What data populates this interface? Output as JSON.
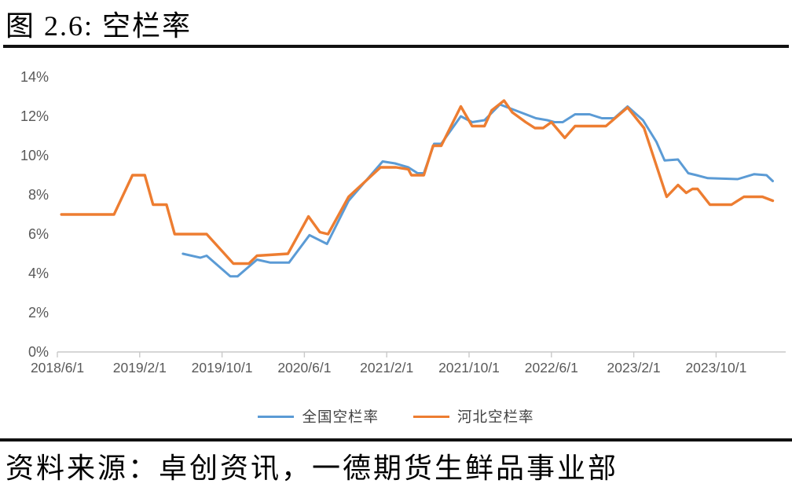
{
  "header": {
    "title": "图 2.6:  空栏率"
  },
  "footer": {
    "source": "资料来源：卓创资讯，一德期货生鲜品事业部"
  },
  "chart_data": {
    "type": "line",
    "title": "空栏率",
    "x_axis": {
      "unit": "date",
      "x_encoding": "months_since_2018-06-01",
      "range": [
        0,
        70
      ],
      "tick_positions": [
        0,
        8,
        16,
        24,
        32,
        40,
        48,
        56,
        64
      ],
      "tick_labels": [
        "2018/6/1",
        "2019/2/1",
        "2019/10/1",
        "2020/6/1",
        "2021/2/1",
        "2021/10/1",
        "2022/6/1",
        "2023/2/1",
        "2023/10/1"
      ]
    },
    "y_axis": {
      "unit": "%",
      "range": [
        0,
        14
      ],
      "tick_values": [
        0,
        2,
        4,
        6,
        8,
        10,
        12,
        14
      ],
      "tick_labels": [
        "0%",
        "2%",
        "4%",
        "6%",
        "8%",
        "10%",
        "12%",
        "14%"
      ],
      "grid": false
    },
    "legend": {
      "position": "bottom",
      "items": [
        {
          "name": "全国空栏率",
          "color": "#5B9BD5"
        },
        {
          "name": "河北空栏率",
          "color": "#ED7D31"
        }
      ]
    },
    "series": [
      {
        "name": "全国空栏率",
        "color": "#5B9BD5",
        "width": 3,
        "points": [
          [
            12.2,
            5.0
          ],
          [
            13.9,
            4.8
          ],
          [
            14.5,
            4.9
          ],
          [
            16.8,
            3.85
          ],
          [
            17.5,
            3.85
          ],
          [
            19.4,
            4.7
          ],
          [
            20.7,
            4.55
          ],
          [
            22.5,
            4.55
          ],
          [
            24.5,
            5.95
          ],
          [
            26.2,
            5.5
          ],
          [
            28.3,
            7.7
          ],
          [
            31.6,
            9.7
          ],
          [
            32.8,
            9.6
          ],
          [
            34.1,
            9.4
          ],
          [
            35.0,
            9.1
          ],
          [
            35.6,
            9.1
          ],
          [
            36.6,
            10.6
          ],
          [
            37.3,
            10.6
          ],
          [
            39.2,
            12.0
          ],
          [
            40.3,
            11.7
          ],
          [
            41.5,
            11.8
          ],
          [
            43.0,
            12.6
          ],
          [
            44.0,
            12.4
          ],
          [
            45.5,
            12.1
          ],
          [
            46.5,
            11.9
          ],
          [
            47.6,
            11.8
          ],
          [
            48.3,
            11.7
          ],
          [
            49.1,
            11.7
          ],
          [
            50.3,
            12.1
          ],
          [
            51.7,
            12.1
          ],
          [
            52.9,
            11.9
          ],
          [
            54.1,
            11.9
          ],
          [
            55.4,
            12.5
          ],
          [
            56.9,
            11.8
          ],
          [
            58.2,
            10.7
          ],
          [
            59.0,
            9.75
          ],
          [
            60.3,
            9.8
          ],
          [
            61.3,
            9.1
          ],
          [
            62.1,
            9.0
          ],
          [
            63.2,
            8.85
          ],
          [
            66.1,
            8.8
          ],
          [
            67.7,
            9.05
          ],
          [
            68.9,
            9.0
          ],
          [
            69.5,
            8.7
          ]
        ]
      },
      {
        "name": "河北空栏率",
        "color": "#ED7D31",
        "width": 3.4,
        "points": [
          [
            0.4,
            7.0
          ],
          [
            5.5,
            7.0
          ],
          [
            7.3,
            9.0
          ],
          [
            8.5,
            9.0
          ],
          [
            9.3,
            7.5
          ],
          [
            10.6,
            7.5
          ],
          [
            11.4,
            6.0
          ],
          [
            14.5,
            6.0
          ],
          [
            17.1,
            4.5
          ],
          [
            18.6,
            4.5
          ],
          [
            19.4,
            4.9
          ],
          [
            22.4,
            5.0
          ],
          [
            24.4,
            6.9
          ],
          [
            25.5,
            6.1
          ],
          [
            26.3,
            6.0
          ],
          [
            28.3,
            7.9
          ],
          [
            31.4,
            9.4
          ],
          [
            32.9,
            9.4
          ],
          [
            34.1,
            9.3
          ],
          [
            34.4,
            9.0
          ],
          [
            35.6,
            9.0
          ],
          [
            36.5,
            10.5
          ],
          [
            37.3,
            10.5
          ],
          [
            39.2,
            12.5
          ],
          [
            40.3,
            11.5
          ],
          [
            41.5,
            11.5
          ],
          [
            42.2,
            12.3
          ],
          [
            43.4,
            12.8
          ],
          [
            44.2,
            12.2
          ],
          [
            45.5,
            11.7
          ],
          [
            46.4,
            11.4
          ],
          [
            47.2,
            11.4
          ],
          [
            48.0,
            11.7
          ],
          [
            49.3,
            10.9
          ],
          [
            50.3,
            11.5
          ],
          [
            53.3,
            11.5
          ],
          [
            55.4,
            12.45
          ],
          [
            57.0,
            11.4
          ],
          [
            59.2,
            7.9
          ],
          [
            60.3,
            8.5
          ],
          [
            61.1,
            8.1
          ],
          [
            61.7,
            8.3
          ],
          [
            62.2,
            8.3
          ],
          [
            63.4,
            7.5
          ],
          [
            65.5,
            7.5
          ],
          [
            66.7,
            7.9
          ],
          [
            68.5,
            7.9
          ],
          [
            69.5,
            7.7
          ]
        ]
      }
    ],
    "colors": {
      "national": "#5B9BD5",
      "hebei": "#ED7D31",
      "axis_text": "#595959",
      "axis_line": "#C9C9C9"
    }
  }
}
